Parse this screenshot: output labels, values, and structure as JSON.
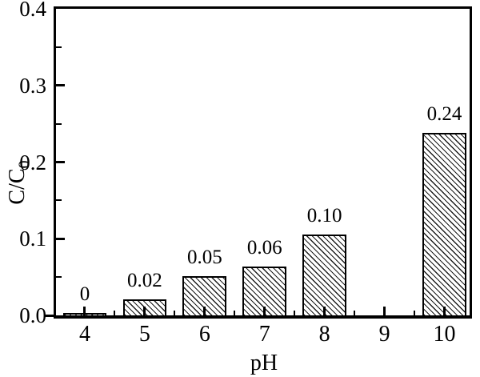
{
  "chart_data": {
    "type": "bar",
    "title": "",
    "xlabel": "pH",
    "ylabel": "C/C0",
    "ylabel_main": "C/C",
    "ylabel_sub": "0",
    "x": [
      4,
      5,
      6,
      7,
      8,
      10
    ],
    "values": [
      0.003,
      0.021,
      0.051,
      0.064,
      0.105,
      0.238
    ],
    "bar_labels": [
      "0",
      "0.02",
      "0.05",
      "0.06",
      "0.10",
      "0.24"
    ],
    "bar_width_units": 0.73,
    "xlim": [
      3.52,
      10.42
    ],
    "ylim": [
      0,
      0.4
    ],
    "x_major_ticks": [
      4,
      5,
      6,
      7,
      8,
      9,
      10
    ],
    "x_tick_labels": [
      "4",
      "5",
      "6",
      "7",
      "8",
      "9",
      "10"
    ],
    "x_minor_ticks": [
      4.5,
      5.5,
      6.5,
      7.5,
      8.5,
      9.5
    ],
    "y_major_ticks": [
      0.1,
      0.2,
      0.3
    ],
    "y_tick_label_values": [
      0,
      0.1,
      0.2,
      0.3,
      0.4
    ],
    "y_tick_labels": [
      "0.0",
      "0.1",
      "0.2",
      "0.3",
      "0.4"
    ],
    "y_minor_ticks": [
      0.05,
      0.15,
      0.25,
      0.35
    ],
    "grid": false,
    "legend": false,
    "hatch_pattern": "diagonal-backslash",
    "colors": {
      "axis": "#000000",
      "text": "#000000",
      "bar_fill": "#ffffff",
      "bar_hatch": "#1c1c1c",
      "background": "#ffffff"
    }
  }
}
